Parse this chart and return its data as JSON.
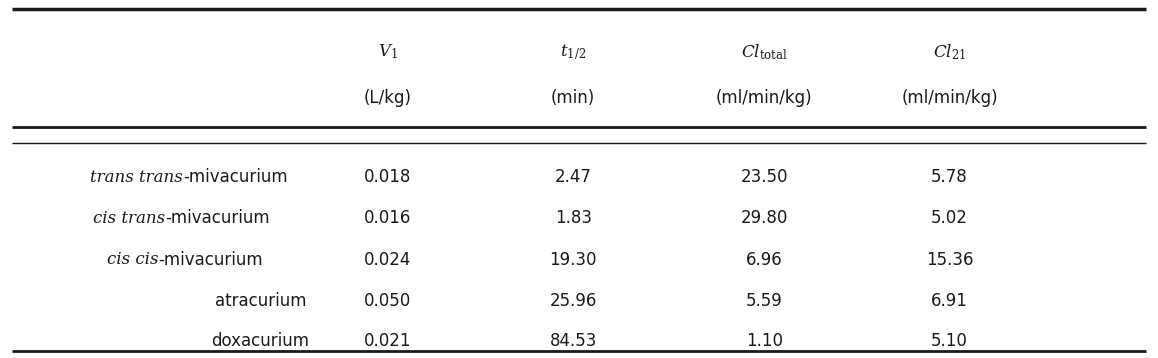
{
  "col_header_line1": [
    "V$_1$",
    "t$_{1/2}$",
    "Cl$_\\mathrm{total}$",
    "Cl$_{21}$"
  ],
  "col_header_line2": [
    "(L/kg)",
    "(min)",
    "(ml/min/kg)",
    "(ml/min/kg)"
  ],
  "rows": [
    {
      "italic_label": "trans trans",
      "normal_label": "-mivacurium",
      "values": [
        "0.018",
        "2.47",
        "23.50",
        "5.78"
      ]
    },
    {
      "italic_label": "cis trans",
      "normal_label": "-mivacurium",
      "values": [
        "0.016",
        "1.83",
        "29.80",
        "5.02"
      ]
    },
    {
      "italic_label": "cis cis",
      "normal_label": "-mivacurium",
      "values": [
        "0.024",
        "19.30",
        "6.96",
        "15.36"
      ]
    },
    {
      "italic_label": "",
      "normal_label": "atracurium",
      "values": [
        "0.050",
        "25.96",
        "5.59",
        "6.91"
      ]
    },
    {
      "italic_label": "",
      "normal_label": "doxacurium",
      "values": [
        "0.021",
        "84.53",
        "1.10",
        "5.10"
      ]
    }
  ],
  "bg_color": "#ffffff",
  "text_color": "#1a1a1a",
  "header_fontsize": 12,
  "body_fontsize": 12
}
